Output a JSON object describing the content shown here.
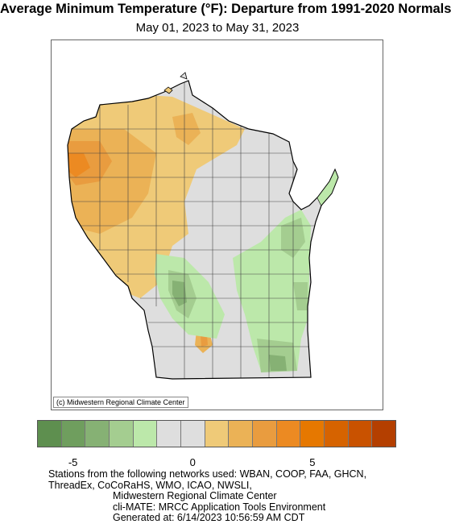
{
  "header": {
    "title": "Average Minimum Temperature (°F): Departure from 1991-2020 Normals",
    "subtitle": "May 01, 2023 to May 31, 2023"
  },
  "map": {
    "region": "Wisconsin",
    "credit": "(c) Midwestern Regional Climate Center"
  },
  "legend": {
    "colors": [
      "#5e8f4f",
      "#6f9e5e",
      "#86b174",
      "#a4cd90",
      "#bce8aa",
      "#dedede",
      "#dedede",
      "#efca78",
      "#ebb256",
      "#e99c3f",
      "#ec8a22",
      "#e67800",
      "#d66300",
      "#c95200",
      "#b43f00"
    ],
    "ticks": [
      {
        "label": "-5",
        "index": 1
      },
      {
        "label": "0",
        "index": 6
      },
      {
        "label": "5",
        "index": 11
      }
    ]
  },
  "footer": {
    "line1": "Stations from the following networks used: WBAN, COOP, FAA, GHCN,",
    "line2": "ThreadEx, CoCoRaHS, WMO, ICAO, NWSLI,",
    "line3": "Midwestern Regional Climate Center",
    "line4": "cli-MATE: MRCC Application Tools Environment",
    "line5": "Generated at: 6/14/2023 10:56:59 AM CDT"
  }
}
